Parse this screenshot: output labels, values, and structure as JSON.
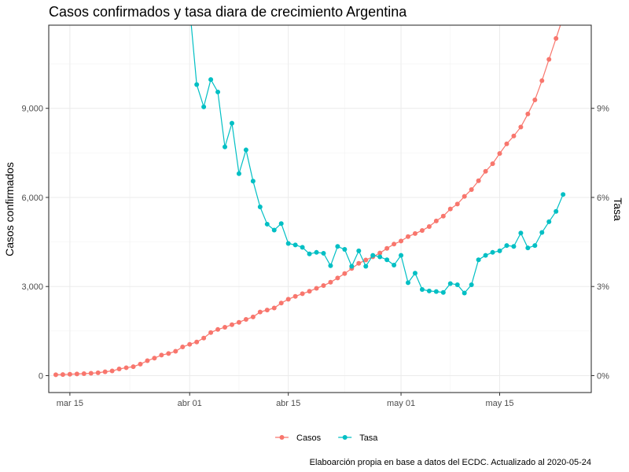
{
  "chart_data": {
    "type": "line",
    "title": "Casos confirmados y tasa diara de crecimiento Argentina",
    "ylabel": "Casos confirmados",
    "y2label": "Tasa",
    "caption": "Elaboarción propia en base a datos del ECDC. Actualizado al  2020-05-24",
    "x_ticks": [
      {
        "date": "2020-03-15",
        "label": "mar 15"
      },
      {
        "date": "2020-04-01",
        "label": "abr 01"
      },
      {
        "date": "2020-04-15",
        "label": "abr 15"
      },
      {
        "date": "2020-05-01",
        "label": "may 01"
      },
      {
        "date": "2020-05-15",
        "label": "may 15"
      }
    ],
    "xlim": [
      "2020-03-12",
      "2020-05-28"
    ],
    "ylim": [
      -570,
      11800
    ],
    "y_ticks": [
      0,
      3000,
      6000,
      9000
    ],
    "y_tick_labels": [
      "0",
      "3,000",
      "6,000",
      "9,000"
    ],
    "y2lim": [
      -0.0057,
      0.118
    ],
    "y2_ticks": [
      0,
      0.03,
      0.06,
      0.09
    ],
    "y2_tick_labels": [
      "0%",
      "3%",
      "6%",
      "9%"
    ],
    "grid": true,
    "legend_position": "bottom",
    "series": [
      {
        "name": "Casos",
        "axis": "left",
        "color": "#F8766D",
        "x": [
          "2020-03-13",
          "2020-03-14",
          "2020-03-15",
          "2020-03-16",
          "2020-03-17",
          "2020-03-18",
          "2020-03-19",
          "2020-03-20",
          "2020-03-21",
          "2020-03-22",
          "2020-03-23",
          "2020-03-24",
          "2020-03-25",
          "2020-03-26",
          "2020-03-27",
          "2020-03-28",
          "2020-03-29",
          "2020-03-30",
          "2020-03-31",
          "2020-04-01",
          "2020-04-02",
          "2020-04-03",
          "2020-04-04",
          "2020-04-05",
          "2020-04-06",
          "2020-04-07",
          "2020-04-08",
          "2020-04-09",
          "2020-04-10",
          "2020-04-11",
          "2020-04-12",
          "2020-04-13",
          "2020-04-14",
          "2020-04-15",
          "2020-04-16",
          "2020-04-17",
          "2020-04-18",
          "2020-04-19",
          "2020-04-20",
          "2020-04-21",
          "2020-04-22",
          "2020-04-23",
          "2020-04-24",
          "2020-04-25",
          "2020-04-26",
          "2020-04-27",
          "2020-04-28",
          "2020-04-29",
          "2020-04-30",
          "2020-05-01",
          "2020-05-02",
          "2020-05-03",
          "2020-05-04",
          "2020-05-05",
          "2020-05-06",
          "2020-05-07",
          "2020-05-08",
          "2020-05-09",
          "2020-05-10",
          "2020-05-11",
          "2020-05-12",
          "2020-05-13",
          "2020-05-14",
          "2020-05-15",
          "2020-05-16",
          "2020-05-17",
          "2020-05-18",
          "2020-05-19",
          "2020-05-20",
          "2020-05-21",
          "2020-05-22",
          "2020-05-23",
          "2020-05-24"
        ],
        "values": [
          30,
          35,
          45,
          56,
          65,
          79,
          97,
          128,
          158,
          225,
          266,
          301,
          387,
          502,
          589,
          690,
          745,
          820,
          966,
          1054,
          1133,
          1265,
          1451,
          1554,
          1628,
          1715,
          1795,
          1894,
          1975,
          2142,
          2208,
          2277,
          2443,
          2571,
          2669,
          2758,
          2839,
          2941,
          3031,
          3144,
          3288,
          3435,
          3607,
          3780,
          3892,
          4003,
          4127,
          4285,
          4428,
          4532,
          4681,
          4783,
          4887,
          5020,
          5208,
          5371,
          5611,
          5776,
          6034,
          6265,
          6563,
          6879,
          7134,
          7479,
          7805,
          8068,
          8371,
          8809,
          9283,
          9931,
          10649,
          11353,
          12076
        ]
      },
      {
        "name": "Tasa",
        "axis": "right",
        "color": "#00BFC4",
        "x": [
          "2020-04-01",
          "2020-04-02",
          "2020-04-03",
          "2020-04-04",
          "2020-04-05",
          "2020-04-06",
          "2020-04-07",
          "2020-04-08",
          "2020-04-09",
          "2020-04-10",
          "2020-04-11",
          "2020-04-12",
          "2020-04-13",
          "2020-04-14",
          "2020-04-15",
          "2020-04-16",
          "2020-04-17",
          "2020-04-18",
          "2020-04-19",
          "2020-04-20",
          "2020-04-21",
          "2020-04-22",
          "2020-04-23",
          "2020-04-24",
          "2020-04-25",
          "2020-04-26",
          "2020-04-27",
          "2020-04-28",
          "2020-04-29",
          "2020-04-30",
          "2020-05-01",
          "2020-05-02",
          "2020-05-03",
          "2020-05-04",
          "2020-05-05",
          "2020-05-06",
          "2020-05-07",
          "2020-05-08",
          "2020-05-09",
          "2020-05-10",
          "2020-05-11",
          "2020-05-12",
          "2020-05-13",
          "2020-05-14",
          "2020-05-15",
          "2020-05-16",
          "2020-05-17",
          "2020-05-18",
          "2020-05-19",
          "2020-05-20",
          "2020-05-21",
          "2020-05-22",
          "2020-05-23",
          "2020-05-24"
        ],
        "values": [
          0.124,
          0.098,
          0.0905,
          0.0997,
          0.0955,
          0.077,
          0.085,
          0.068,
          0.076,
          0.0655,
          0.0568,
          0.051,
          0.049,
          0.0512,
          0.0445,
          0.044,
          0.0432,
          0.041,
          0.0415,
          0.0412,
          0.037,
          0.0435,
          0.0425,
          0.0368,
          0.042,
          0.0368,
          0.0405,
          0.04,
          0.039,
          0.0372,
          0.0405,
          0.0313,
          0.0345,
          0.029,
          0.0285,
          0.0283,
          0.028,
          0.031,
          0.0306,
          0.0278,
          0.0306,
          0.039,
          0.0405,
          0.0415,
          0.042,
          0.0438,
          0.0435,
          0.048,
          0.043,
          0.0438,
          0.0482,
          0.0518,
          0.0553,
          0.061
        ]
      }
    ]
  }
}
